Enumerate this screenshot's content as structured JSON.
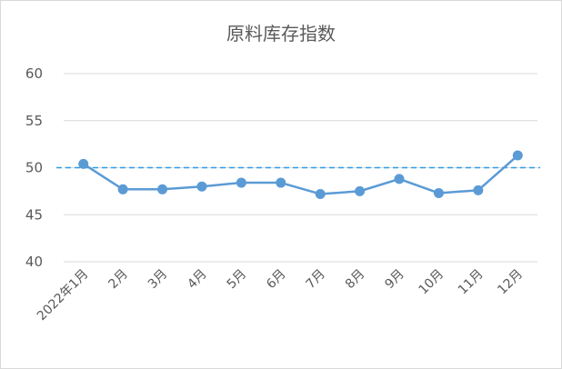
{
  "chart_data": {
    "type": "line",
    "title": "原料库存指数",
    "categories": [
      "2022年1月",
      "2月",
      "3月",
      "4月",
      "5月",
      "6月",
      "7月",
      "8月",
      "9月",
      "10月",
      "11月",
      "12月"
    ],
    "series": [
      {
        "values": [
          50.4,
          47.7,
          47.7,
          48.0,
          48.4,
          48.4,
          47.2,
          47.5,
          48.8,
          47.3,
          47.6,
          51.3
        ]
      }
    ],
    "reference_line": 50,
    "yticks": [
      40,
      45,
      50,
      55,
      60
    ],
    "ylim": [
      40,
      60
    ],
    "grid": true,
    "colors": {
      "line": "#5b9bd5",
      "reference": "#2e9be6",
      "grid": "#d9d9d9"
    }
  }
}
